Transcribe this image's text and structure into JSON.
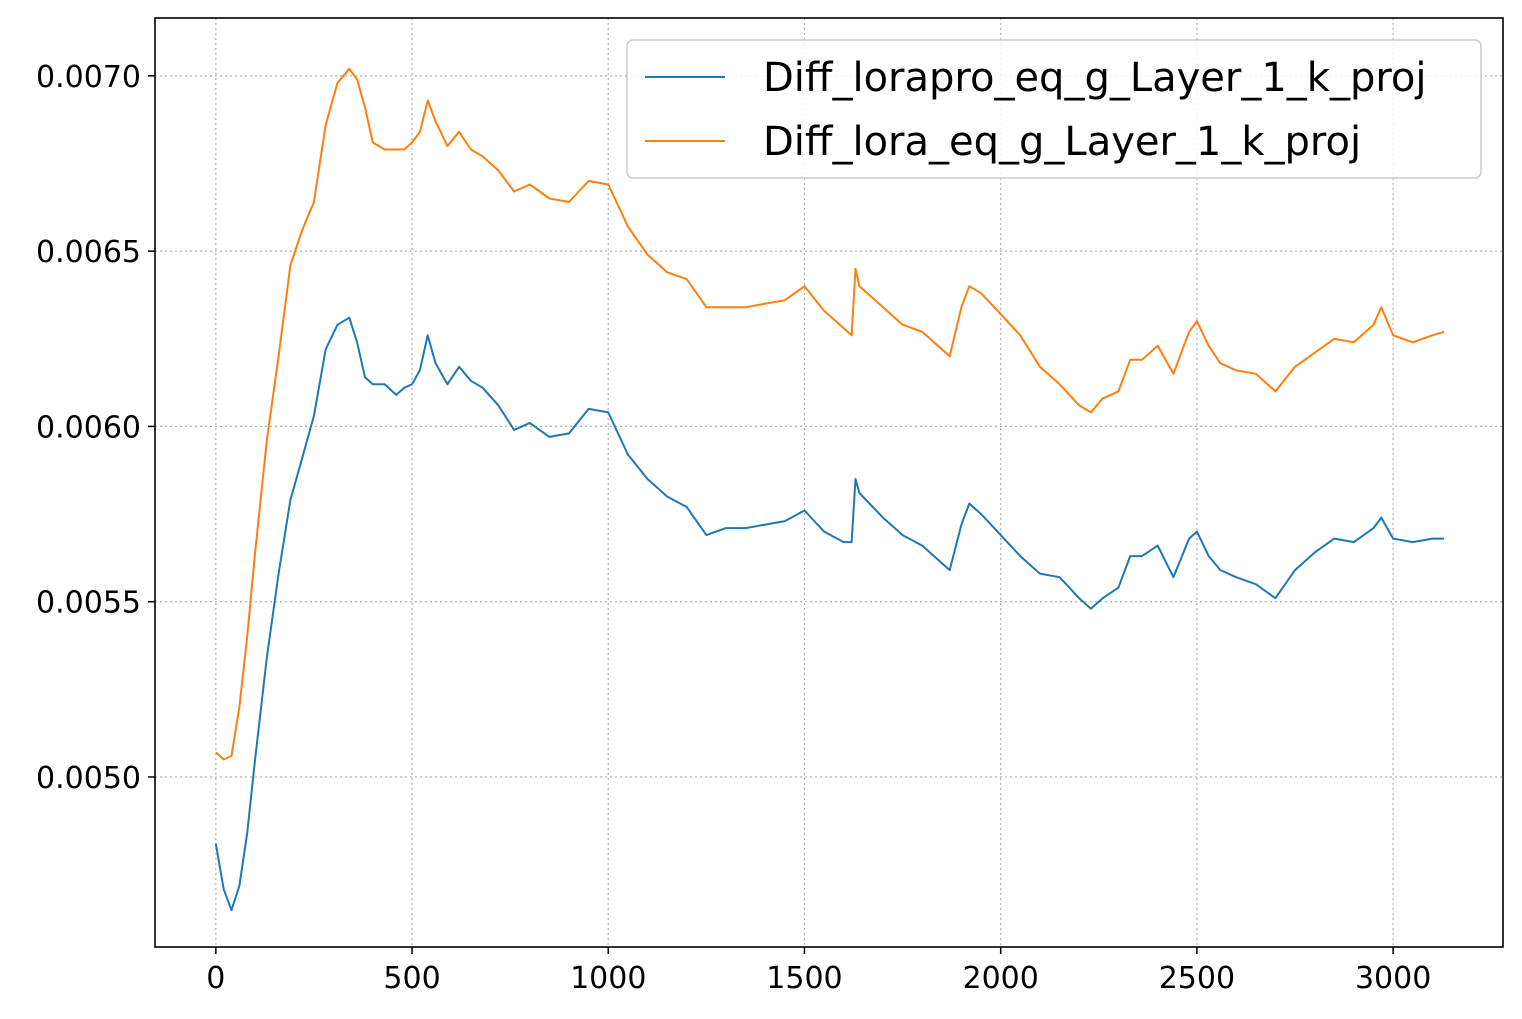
{
  "chart_data": {
    "type": "line",
    "title": "",
    "xlabel": "",
    "ylabel": "",
    "xlim": [
      -155,
      3280
    ],
    "ylim": [
      0.004515,
      0.007165
    ],
    "grid": true,
    "legend_position": "upper right",
    "x_ticks": [
      0,
      500,
      1000,
      1500,
      2000,
      2500,
      3000
    ],
    "x_tick_labels": [
      "0",
      "500",
      "1000",
      "1500",
      "2000",
      "2500",
      "3000"
    ],
    "y_ticks": [
      0.005,
      0.0055,
      0.006,
      0.0065,
      0.007
    ],
    "y_tick_labels": [
      "0.0050",
      "0.0055",
      "0.0060",
      "0.0065",
      "0.0070"
    ],
    "series": [
      {
        "name": "Diff_lorapro_eq_g_Layer_1_k_proj",
        "color": "#1f77b4",
        "x": [
          0,
          20,
          40,
          60,
          80,
          100,
          130,
          160,
          190,
          220,
          250,
          280,
          310,
          340,
          360,
          380,
          400,
          430,
          460,
          480,
          500,
          520,
          540,
          560,
          590,
          620,
          650,
          680,
          720,
          760,
          800,
          850,
          900,
          950,
          1000,
          1050,
          1100,
          1150,
          1200,
          1250,
          1300,
          1350,
          1400,
          1450,
          1500,
          1550,
          1600,
          1620,
          1630,
          1640,
          1700,
          1750,
          1800,
          1850,
          1870,
          1900,
          1920,
          1950,
          2000,
          2050,
          2100,
          2150,
          2200,
          2230,
          2260,
          2300,
          2330,
          2360,
          2400,
          2440,
          2480,
          2500,
          2530,
          2560,
          2600,
          2650,
          2700,
          2750,
          2800,
          2850,
          2900,
          2950,
          2970,
          3000,
          3050,
          3100,
          3130
        ],
        "values": [
          0.00481,
          0.00468,
          0.00462,
          0.00469,
          0.00484,
          0.00505,
          0.00534,
          0.00558,
          0.00579,
          0.00591,
          0.00603,
          0.00622,
          0.00629,
          0.00631,
          0.00624,
          0.00614,
          0.00612,
          0.00612,
          0.00609,
          0.00611,
          0.00612,
          0.00616,
          0.00626,
          0.00618,
          0.00612,
          0.00617,
          0.00613,
          0.00611,
          0.00606,
          0.00599,
          0.00601,
          0.00597,
          0.00598,
          0.00605,
          0.00604,
          0.00592,
          0.00585,
          0.0058,
          0.00577,
          0.00569,
          0.00571,
          0.00571,
          0.00572,
          0.00573,
          0.00576,
          0.0057,
          0.00567,
          0.00567,
          0.00585,
          0.00581,
          0.00574,
          0.00569,
          0.00566,
          0.00561,
          0.00559,
          0.00572,
          0.00578,
          0.00575,
          0.00569,
          0.00563,
          0.00558,
          0.00557,
          0.00551,
          0.00548,
          0.00551,
          0.00554,
          0.00563,
          0.00563,
          0.00566,
          0.00557,
          0.00568,
          0.0057,
          0.00563,
          0.00559,
          0.00557,
          0.00555,
          0.00551,
          0.00559,
          0.00564,
          0.00568,
          0.00567,
          0.00571,
          0.00574,
          0.00568,
          0.00567,
          0.00568,
          0.00568
        ]
      },
      {
        "name": "Diff_lora_eq_g_Layer_1_k_proj",
        "color": "#ff7f0e",
        "x": [
          0,
          20,
          40,
          60,
          80,
          100,
          130,
          160,
          190,
          220,
          250,
          280,
          310,
          340,
          360,
          380,
          400,
          430,
          460,
          480,
          500,
          520,
          540,
          560,
          590,
          620,
          650,
          680,
          720,
          760,
          800,
          850,
          900,
          950,
          1000,
          1050,
          1100,
          1150,
          1200,
          1250,
          1300,
          1350,
          1400,
          1450,
          1500,
          1550,
          1600,
          1620,
          1630,
          1640,
          1700,
          1750,
          1800,
          1850,
          1870,
          1900,
          1920,
          1950,
          2000,
          2050,
          2100,
          2150,
          2200,
          2230,
          2260,
          2300,
          2330,
          2360,
          2400,
          2440,
          2480,
          2500,
          2530,
          2560,
          2600,
          2650,
          2700,
          2750,
          2800,
          2850,
          2900,
          2950,
          2970,
          3000,
          3050,
          3100,
          3130
        ],
        "values": [
          0.00507,
          0.00505,
          0.00506,
          0.0052,
          0.0054,
          0.00564,
          0.00596,
          0.0062,
          0.00646,
          0.00656,
          0.00664,
          0.00686,
          0.00698,
          0.00702,
          0.00699,
          0.00691,
          0.00681,
          0.00679,
          0.00679,
          0.00679,
          0.00681,
          0.00684,
          0.00693,
          0.00687,
          0.0068,
          0.00684,
          0.00679,
          0.00677,
          0.00673,
          0.00667,
          0.00669,
          0.00665,
          0.00664,
          0.0067,
          0.00669,
          0.00657,
          0.00649,
          0.00644,
          0.00642,
          0.00634,
          0.00634,
          0.00634,
          0.00635,
          0.00636,
          0.0064,
          0.00633,
          0.00628,
          0.00626,
          0.00645,
          0.0064,
          0.00634,
          0.00629,
          0.00627,
          0.00622,
          0.0062,
          0.00634,
          0.0064,
          0.00638,
          0.00632,
          0.00626,
          0.00617,
          0.00612,
          0.00606,
          0.00604,
          0.00608,
          0.0061,
          0.00619,
          0.00619,
          0.00623,
          0.00615,
          0.00627,
          0.0063,
          0.00623,
          0.00618,
          0.00616,
          0.00615,
          0.0061,
          0.00617,
          0.00621,
          0.00625,
          0.00624,
          0.00629,
          0.00634,
          0.00626,
          0.00624,
          0.00626,
          0.00627
        ]
      }
    ]
  }
}
